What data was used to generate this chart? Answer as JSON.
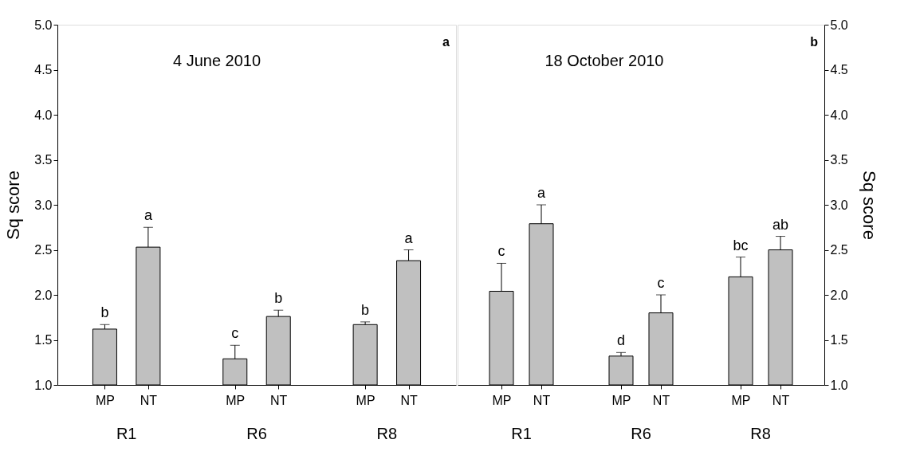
{
  "chart_data": [
    {
      "type": "bar",
      "title": "4 June 2010",
      "subtitle": "a",
      "ylabel": "Sq score",
      "categories": [
        "MP",
        "NT",
        "MP",
        "NT",
        "MP",
        "NT"
      ],
      "annotations": [
        "R1",
        "R6",
        "R8"
      ],
      "series": [
        {
          "color": "#c0c0c0",
          "values": [
            1.62,
            2.53,
            1.29,
            1.76,
            1.67,
            2.38
          ],
          "errors": [
            [
              1.62,
              1.67
            ],
            [
              2.53,
              2.75
            ],
            [
              1.29,
              1.44
            ],
            [
              1.76,
              1.83
            ],
            [
              1.67,
              1.7
            ],
            [
              2.38,
              2.5
            ]
          ],
          "value_labels": [
            "b",
            "a",
            "c",
            "b",
            "b",
            "a"
          ]
        }
      ],
      "ylim": [
        1.0,
        5.0
      ],
      "yticks": [
        {
          "value": 1,
          "label": "1.0"
        },
        1.5,
        {
          "value": 2,
          "label": "2.0"
        },
        2.5,
        {
          "value": 3,
          "label": "3.0"
        },
        3.5,
        {
          "value": 4,
          "label": "4.0"
        },
        4.5,
        {
          "value": 5,
          "label": "5.0"
        }
      ],
      "grid": false
    },
    {
      "type": "bar",
      "title": "18 October 2010",
      "subtitle": "b",
      "ylabel": "Sq score",
      "categories": [
        "MP",
        "NT",
        "MP",
        "NT",
        "MP",
        "NT"
      ],
      "annotations": [
        "R1",
        "R6",
        "R8"
      ],
      "series": [
        {
          "color": "#c0c0c0",
          "values": [
            2.04,
            2.79,
            1.32,
            1.8,
            2.2,
            2.5
          ],
          "errors": [
            [
              2.04,
              2.35
            ],
            [
              2.79,
              3.0
            ],
            [
              1.32,
              1.36
            ],
            [
              1.8,
              2.0
            ],
            [
              2.2,
              2.42
            ],
            [
              2.5,
              2.65
            ]
          ],
          "value_labels": [
            "c",
            "a",
            "d",
            "c",
            "bc",
            "ab"
          ]
        }
      ],
      "ylim": [
        1.0,
        5.0
      ],
      "yticks": [
        {
          "value": 1,
          "label": "1.0"
        },
        1.5,
        {
          "value": 2,
          "label": "2.0"
        },
        2.5,
        {
          "value": 3,
          "label": "3.0"
        },
        3.5,
        {
          "value": 4,
          "label": "4.0"
        },
        4.5,
        {
          "value": 5,
          "label": "5.0"
        }
      ],
      "grid": false
    }
  ]
}
